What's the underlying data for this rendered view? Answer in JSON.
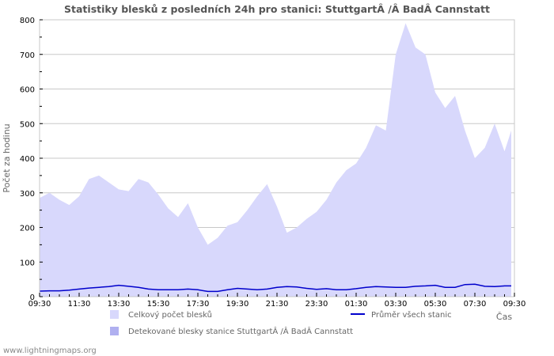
{
  "chart_data": {
    "type": "area",
    "title": "Statistiky blesků z posledních 24h pro stanici: StuttgartÂ /Â BadÂ Cannstatt",
    "xlabel": "Čas",
    "ylabel": "Počet za hodinu",
    "ylim": [
      0,
      800
    ],
    "yticks": [
      0,
      100,
      200,
      300,
      400,
      500,
      600,
      700,
      800
    ],
    "xtick_labels": [
      "09:30",
      "11:30",
      "13:30",
      "15:30",
      "17:30",
      "19:30",
      "21:30",
      "23:30",
      "01:30",
      "03:30",
      "05:30",
      "07:30",
      "09:30"
    ],
    "grid": true,
    "legend_position": "bottom",
    "x": [
      "09:30",
      "10:00",
      "10:30",
      "11:00",
      "11:30",
      "12:00",
      "12:30",
      "13:00",
      "13:30",
      "14:00",
      "14:30",
      "15:00",
      "15:30",
      "16:00",
      "16:30",
      "17:00",
      "17:30",
      "18:00",
      "18:30",
      "19:00",
      "19:30",
      "20:00",
      "20:30",
      "21:00",
      "21:30",
      "22:00",
      "22:30",
      "23:00",
      "23:30",
      "00:00",
      "00:30",
      "01:00",
      "01:30",
      "02:00",
      "02:30",
      "03:00",
      "03:30",
      "04:00",
      "04:30",
      "05:00",
      "05:30",
      "06:00",
      "06:30",
      "07:00",
      "07:30",
      "08:00",
      "08:30",
      "09:00",
      "09:20"
    ],
    "series": [
      {
        "name": "Celkový počet blesků",
        "style": "area",
        "color": "#d8d8fc",
        "values": [
          285,
          300,
          280,
          265,
          290,
          340,
          350,
          330,
          310,
          305,
          340,
          330,
          295,
          255,
          230,
          270,
          200,
          150,
          170,
          205,
          215,
          250,
          290,
          325,
          260,
          185,
          200,
          225,
          245,
          280,
          330,
          365,
          385,
          430,
          495,
          480,
          700,
          790,
          720,
          700,
          590,
          545,
          580,
          480,
          400,
          430,
          500,
          420,
          480
        ]
      },
      {
        "name": "Detekované blesky stanice StuttgartÂ /Â BadÂ Cannstatt",
        "style": "area",
        "color": "#b0b0f0",
        "values": [
          0,
          0,
          0,
          0,
          0,
          0,
          0,
          0,
          0,
          0,
          0,
          0,
          0,
          0,
          0,
          0,
          0,
          0,
          0,
          0,
          0,
          0,
          0,
          0,
          0,
          0,
          0,
          0,
          0,
          0,
          0,
          0,
          0,
          0,
          0,
          0,
          0,
          0,
          0,
          0,
          0,
          0,
          0,
          0,
          0,
          0,
          0,
          0,
          0
        ]
      },
      {
        "name": "Průměr všech stanic",
        "style": "line",
        "color": "#0000cc",
        "values": [
          16,
          17,
          17,
          19,
          22,
          25,
          27,
          29,
          33,
          30,
          27,
          22,
          20,
          20,
          20,
          22,
          20,
          15,
          15,
          20,
          24,
          22,
          20,
          22,
          27,
          29,
          28,
          24,
          21,
          23,
          20,
          20,
          23,
          27,
          29,
          28,
          27,
          27,
          30,
          31,
          33,
          27,
          27,
          35,
          36,
          30,
          29,
          31,
          31
        ]
      }
    ]
  },
  "legend": {
    "total_label": "Celkový počet blesků",
    "detected_label": "Detekované blesky stanice StuttgartÂ /Â BadÂ Cannstatt",
    "average_label": "Průměr všech stanic",
    "total_color": "#d8d8fc",
    "detected_color": "#b0b0f0",
    "average_color": "#0000cc"
  },
  "footer": {
    "source": "www.lightningmaps.org"
  },
  "colors": {
    "grid": "#c8c8c8",
    "frame": "#c8c8c8",
    "axis_text": "#000000",
    "title": "#555555"
  }
}
